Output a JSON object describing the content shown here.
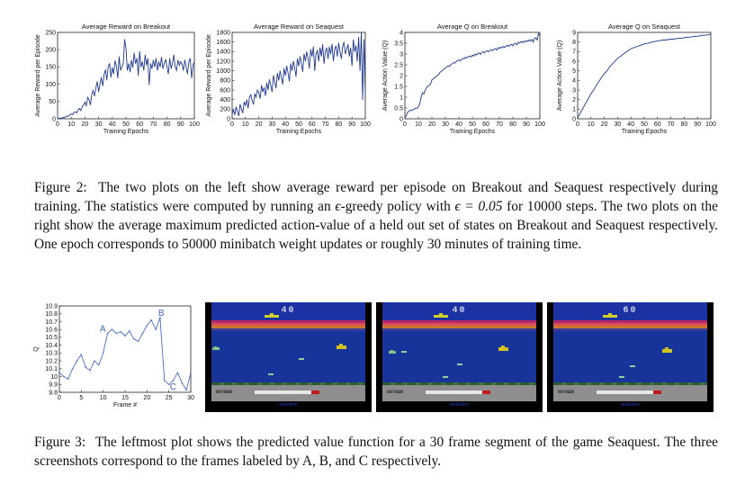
{
  "figure2": {
    "plots": [
      {
        "title": "Average Reward on Breakout",
        "xlabel": "Training Epochs",
        "ylabel": "Average Reward per Episode",
        "yticks": [
          "0",
          "50",
          "100",
          "150",
          "200",
          "250"
        ],
        "xticks": [
          "0",
          "10",
          "20",
          "30",
          "40",
          "50",
          "60",
          "70",
          "80",
          "90",
          "100"
        ]
      },
      {
        "title": "Average Reward on Seaquest",
        "xlabel": "Training Epochs",
        "ylabel": "Average Reward per Episode",
        "yticks": [
          "0",
          "200",
          "400",
          "600",
          "800",
          "1000",
          "1200",
          "1400",
          "1600",
          "1800"
        ],
        "xticks": [
          "0",
          "10",
          "20",
          "30",
          "40",
          "50",
          "60",
          "70",
          "80",
          "90",
          "100"
        ]
      },
      {
        "title": "Average Q on Breakout",
        "xlabel": "Training Epochs",
        "ylabel": "Average Action Value (Q)",
        "yticks": [
          "0",
          "0.5",
          "1",
          "1.5",
          "2",
          "2.5",
          "3",
          "3.5",
          "4"
        ],
        "xticks": [
          "0",
          "10",
          "20",
          "30",
          "40",
          "50",
          "60",
          "70",
          "80",
          "90",
          "100"
        ]
      },
      {
        "title": "Average Q on Seaquest",
        "xlabel": "Training Epochs",
        "ylabel": "Average Action Value (Q)",
        "yticks": [
          "0",
          "1",
          "2",
          "3",
          "4",
          "5",
          "6",
          "7",
          "8",
          "9"
        ],
        "xticks": [
          "0",
          "10",
          "20",
          "30",
          "40",
          "50",
          "60",
          "70",
          "80",
          "90",
          "100"
        ]
      }
    ],
    "caption_label": "Figure 2:",
    "caption_text_1": "The two plots on the left show average reward per episode on Breakout and Seaquest respectively during training. The statistics were computed by running an",
    "caption_epsilon": "ϵ",
    "caption_text_2": "-greedy policy with",
    "caption_eq": "ϵ = 0.05",
    "caption_text_3": "for 10000 steps. The two plots on the right show the average maximum predicted action-value of a held out set of states on Breakout and Seaquest respectively. One epoch corresponds to 50000 minibatch weight updates or roughly 30 minutes of training time."
  },
  "figure3": {
    "plot": {
      "xlabel": "Frame #",
      "ylabel": "Q",
      "yticks": [
        "9.8",
        "9.9",
        "10",
        "10.1",
        "10.2",
        "10.3",
        "10.4",
        "10.5",
        "10.6",
        "10.7",
        "10.8",
        "10.9"
      ],
      "xticks": [
        "0",
        "5",
        "10",
        "15",
        "20",
        "25",
        "30"
      ],
      "labels": [
        "A",
        "B",
        "C"
      ]
    },
    "screens": [
      {
        "score": "40",
        "logo": "activision"
      },
      {
        "score": "40",
        "logo": "activision"
      },
      {
        "score": "60",
        "logo": "activision"
      }
    ],
    "oxygen_label": "OXYGEN",
    "caption_label": "Figure 3:",
    "caption_text": "The leftmost plot shows the predicted value function for a 30 frame segment of the game Seaquest. The three screenshots correspond to the frames labeled by A, B, and C respectively."
  },
  "chart_data": [
    {
      "type": "line",
      "title": "Average Reward on Breakout",
      "xlabel": "Training Epochs",
      "ylabel": "Average Reward per Episode",
      "xlim": [
        0,
        100
      ],
      "ylim": [
        0,
        250
      ],
      "x": [
        0,
        1,
        2,
        3,
        4,
        5,
        6,
        7,
        8,
        9,
        10,
        11,
        12,
        13,
        14,
        15,
        16,
        17,
        18,
        19,
        20,
        21,
        22,
        23,
        24,
        25,
        26,
        27,
        28,
        29,
        30,
        31,
        32,
        33,
        34,
        35,
        36,
        37,
        38,
        39,
        40,
        41,
        42,
        43,
        44,
        45,
        46,
        47,
        48,
        49,
        50,
        51,
        52,
        53,
        54,
        55,
        56,
        57,
        58,
        59,
        60,
        61,
        62,
        63,
        64,
        65,
        66,
        67,
        68,
        69,
        70,
        71,
        72,
        73,
        74,
        75,
        76,
        77,
        78,
        79,
        80,
        81,
        82,
        83,
        84,
        85,
        86,
        87,
        88,
        89,
        90,
        91,
        92,
        93,
        94,
        95,
        96,
        97,
        98,
        99,
        100
      ],
      "y": [
        0,
        1,
        2,
        1,
        4,
        3,
        6,
        8,
        7,
        12,
        14,
        12,
        18,
        20,
        17,
        26,
        30,
        24,
        35,
        40,
        48,
        38,
        62,
        55,
        40,
        70,
        82,
        66,
        90,
        108,
        78,
        100,
        120,
        95,
        128,
        142,
        112,
        150,
        160,
        120,
        148,
        130,
        168,
        152,
        118,
        180,
        140,
        150,
        160,
        230,
        205,
        140,
        160,
        135,
        170,
        148,
        190,
        160,
        175,
        125,
        195,
        150,
        165,
        140,
        185,
        155,
        175,
        98,
        160,
        145,
        170,
        150,
        175,
        140,
        165,
        150,
        178,
        145,
        160,
        172,
        150,
        130,
        175,
        145,
        160,
        185,
        150,
        140,
        170,
        155,
        165,
        158,
        140,
        170,
        150,
        130,
        165,
        175,
        118,
        155,
        165
      ]
    },
    {
      "type": "line",
      "title": "Average Reward on Seaquest",
      "xlabel": "Training Epochs",
      "ylabel": "Average Reward per Episode",
      "xlim": [
        0,
        100
      ],
      "ylim": [
        0,
        1800
      ],
      "x": [
        0,
        1,
        2,
        3,
        4,
        5,
        6,
        7,
        8,
        9,
        10,
        11,
        12,
        13,
        14,
        15,
        16,
        17,
        18,
        19,
        20,
        21,
        22,
        23,
        24,
        25,
        26,
        27,
        28,
        29,
        30,
        31,
        32,
        33,
        34,
        35,
        36,
        37,
        38,
        39,
        40,
        41,
        42,
        43,
        44,
        45,
        46,
        47,
        48,
        49,
        50,
        51,
        52,
        53,
        54,
        55,
        56,
        57,
        58,
        59,
        60,
        61,
        62,
        63,
        64,
        65,
        66,
        67,
        68,
        69,
        70,
        71,
        72,
        73,
        74,
        75,
        76,
        77,
        78,
        79,
        80,
        81,
        82,
        83,
        84,
        85,
        86,
        87,
        88,
        89,
        90,
        91,
        92,
        93,
        94,
        95,
        96,
        97,
        98,
        99,
        100
      ],
      "y": [
        100,
        180,
        80,
        250,
        150,
        60,
        300,
        200,
        120,
        350,
        280,
        400,
        220,
        450,
        500,
        380,
        300,
        520,
        450,
        600,
        550,
        420,
        700,
        560,
        650,
        480,
        750,
        600,
        820,
        700,
        560,
        900,
        760,
        640,
        950,
        800,
        1000,
        850,
        720,
        1050,
        900,
        1100,
        950,
        780,
        1150,
        1000,
        1200,
        1050,
        880,
        1250,
        1100,
        1300,
        1150,
        980,
        1350,
        1200,
        1400,
        1250,
        1050,
        1450,
        1300,
        1500,
        1000,
        1350,
        1420,
        1200,
        1480,
        1300,
        1550,
        1150,
        1400,
        1480,
        1250,
        1500,
        1350,
        1560,
        1200,
        1450,
        1520,
        1300,
        1580,
        1400,
        1250,
        1500,
        1600,
        1350,
        1450,
        1550,
        1300,
        1480,
        1100,
        1650,
        1400,
        1520,
        1200,
        1700,
        1000,
        1800,
        400,
        1650,
        500
      ]
    },
    {
      "type": "line",
      "title": "Average Q on Breakout",
      "xlabel": "Training Epochs",
      "ylabel": "Average Action Value (Q)",
      "xlim": [
        0,
        100
      ],
      "ylim": [
        0,
        4
      ],
      "x": [
        0,
        1,
        2,
        3,
        4,
        5,
        6,
        7,
        8,
        9,
        10,
        11,
        12,
        13,
        14,
        15,
        16,
        17,
        18,
        19,
        20,
        21,
        22,
        23,
        24,
        25,
        26,
        27,
        28,
        29,
        30,
        31,
        32,
        33,
        34,
        35,
        36,
        37,
        38,
        39,
        40,
        41,
        42,
        43,
        44,
        45,
        46,
        47,
        48,
        49,
        50,
        51,
        52,
        53,
        54,
        55,
        56,
        57,
        58,
        59,
        60,
        61,
        62,
        63,
        64,
        65,
        66,
        67,
        68,
        69,
        70,
        71,
        72,
        73,
        74,
        75,
        76,
        77,
        78,
        79,
        80,
        81,
        82,
        83,
        84,
        85,
        86,
        87,
        88,
        89,
        90,
        91,
        92,
        93,
        94,
        95,
        96,
        97,
        98,
        99,
        100
      ],
      "y": [
        0.05,
        0.15,
        0.3,
        0.35,
        0.4,
        0.38,
        0.42,
        0.45,
        0.5,
        0.48,
        0.55,
        0.7,
        1.0,
        1.2,
        1.15,
        1.3,
        1.45,
        1.5,
        1.55,
        1.6,
        1.8,
        1.85,
        1.9,
        1.95,
        2.0,
        2.05,
        2.15,
        2.2,
        2.25,
        2.3,
        2.35,
        2.4,
        2.45,
        2.42,
        2.5,
        2.55,
        2.6,
        2.58,
        2.65,
        2.7,
        2.72,
        2.68,
        2.75,
        2.8,
        2.78,
        2.85,
        2.82,
        2.88,
        2.9,
        2.86,
        2.95,
        2.9,
        3.0,
        2.95,
        3.02,
        3.05,
        2.98,
        3.08,
        3.1,
        3.05,
        3.12,
        3.15,
        3.1,
        3.18,
        3.2,
        3.15,
        3.22,
        3.25,
        3.18,
        3.3,
        3.25,
        3.32,
        3.28,
        3.35,
        3.3,
        3.38,
        3.4,
        3.35,
        3.42,
        3.45,
        3.38,
        3.48,
        3.5,
        3.42,
        3.55,
        3.5,
        3.58,
        3.52,
        3.6,
        3.55,
        3.62,
        3.58,
        3.65,
        3.6,
        3.68,
        3.55,
        3.72,
        3.75,
        3.65,
        3.95,
        3.85
      ]
    },
    {
      "type": "line",
      "title": "Average Q on Seaquest",
      "xlabel": "Training Epochs",
      "ylabel": "Average Action Value (Q)",
      "xlim": [
        0,
        100
      ],
      "ylim": [
        0,
        9
      ],
      "x": [
        0,
        2,
        4,
        6,
        8,
        10,
        12,
        14,
        16,
        18,
        20,
        22,
        24,
        26,
        28,
        30,
        32,
        34,
        36,
        38,
        40,
        42,
        44,
        46,
        48,
        50,
        52,
        54,
        56,
        58,
        60,
        62,
        64,
        66,
        68,
        70,
        72,
        74,
        76,
        78,
        80,
        82,
        84,
        86,
        88,
        90,
        92,
        94,
        96,
        98,
        100
      ],
      "y": [
        0.1,
        0.6,
        1.1,
        1.6,
        2.1,
        2.6,
        3.0,
        3.5,
        3.9,
        4.3,
        4.7,
        5.0,
        5.4,
        5.7,
        6.0,
        6.3,
        6.5,
        6.7,
        6.9,
        7.1,
        7.3,
        7.4,
        7.5,
        7.6,
        7.7,
        7.8,
        7.85,
        7.9,
        8.0,
        8.05,
        8.1,
        8.15,
        8.2,
        8.2,
        8.25,
        8.3,
        8.3,
        8.35,
        8.4,
        8.4,
        8.45,
        8.5,
        8.5,
        8.55,
        8.6,
        8.6,
        8.65,
        8.7,
        8.7,
        8.75,
        8.8
      ]
    },
    {
      "type": "line",
      "title": "",
      "xlabel": "Frame #",
      "ylabel": "Q",
      "xlim": [
        0,
        30
      ],
      "ylim": [
        9.8,
        10.9
      ],
      "x": [
        0,
        1,
        2,
        3,
        4,
        5,
        6,
        7,
        8,
        9,
        10,
        11,
        12,
        13,
        14,
        15,
        16,
        17,
        18,
        19,
        20,
        21,
        22,
        23,
        24,
        25,
        26,
        27,
        28,
        29,
        30
      ],
      "y": [
        10.05,
        10.0,
        9.97,
        10.1,
        10.2,
        10.28,
        10.12,
        10.08,
        10.2,
        10.15,
        10.3,
        10.55,
        10.6,
        10.55,
        10.57,
        10.52,
        10.58,
        10.48,
        10.45,
        10.55,
        10.65,
        10.72,
        10.6,
        10.75,
        9.95,
        9.9,
        9.95,
        10.05,
        9.92,
        9.83,
        10.05
      ],
      "annotations": [
        {
          "label": "A",
          "x": 11,
          "y": 10.55
        },
        {
          "label": "B",
          "x": 23,
          "y": 10.75
        },
        {
          "label": "C",
          "x": 24,
          "y": 9.95
        }
      ]
    }
  ]
}
